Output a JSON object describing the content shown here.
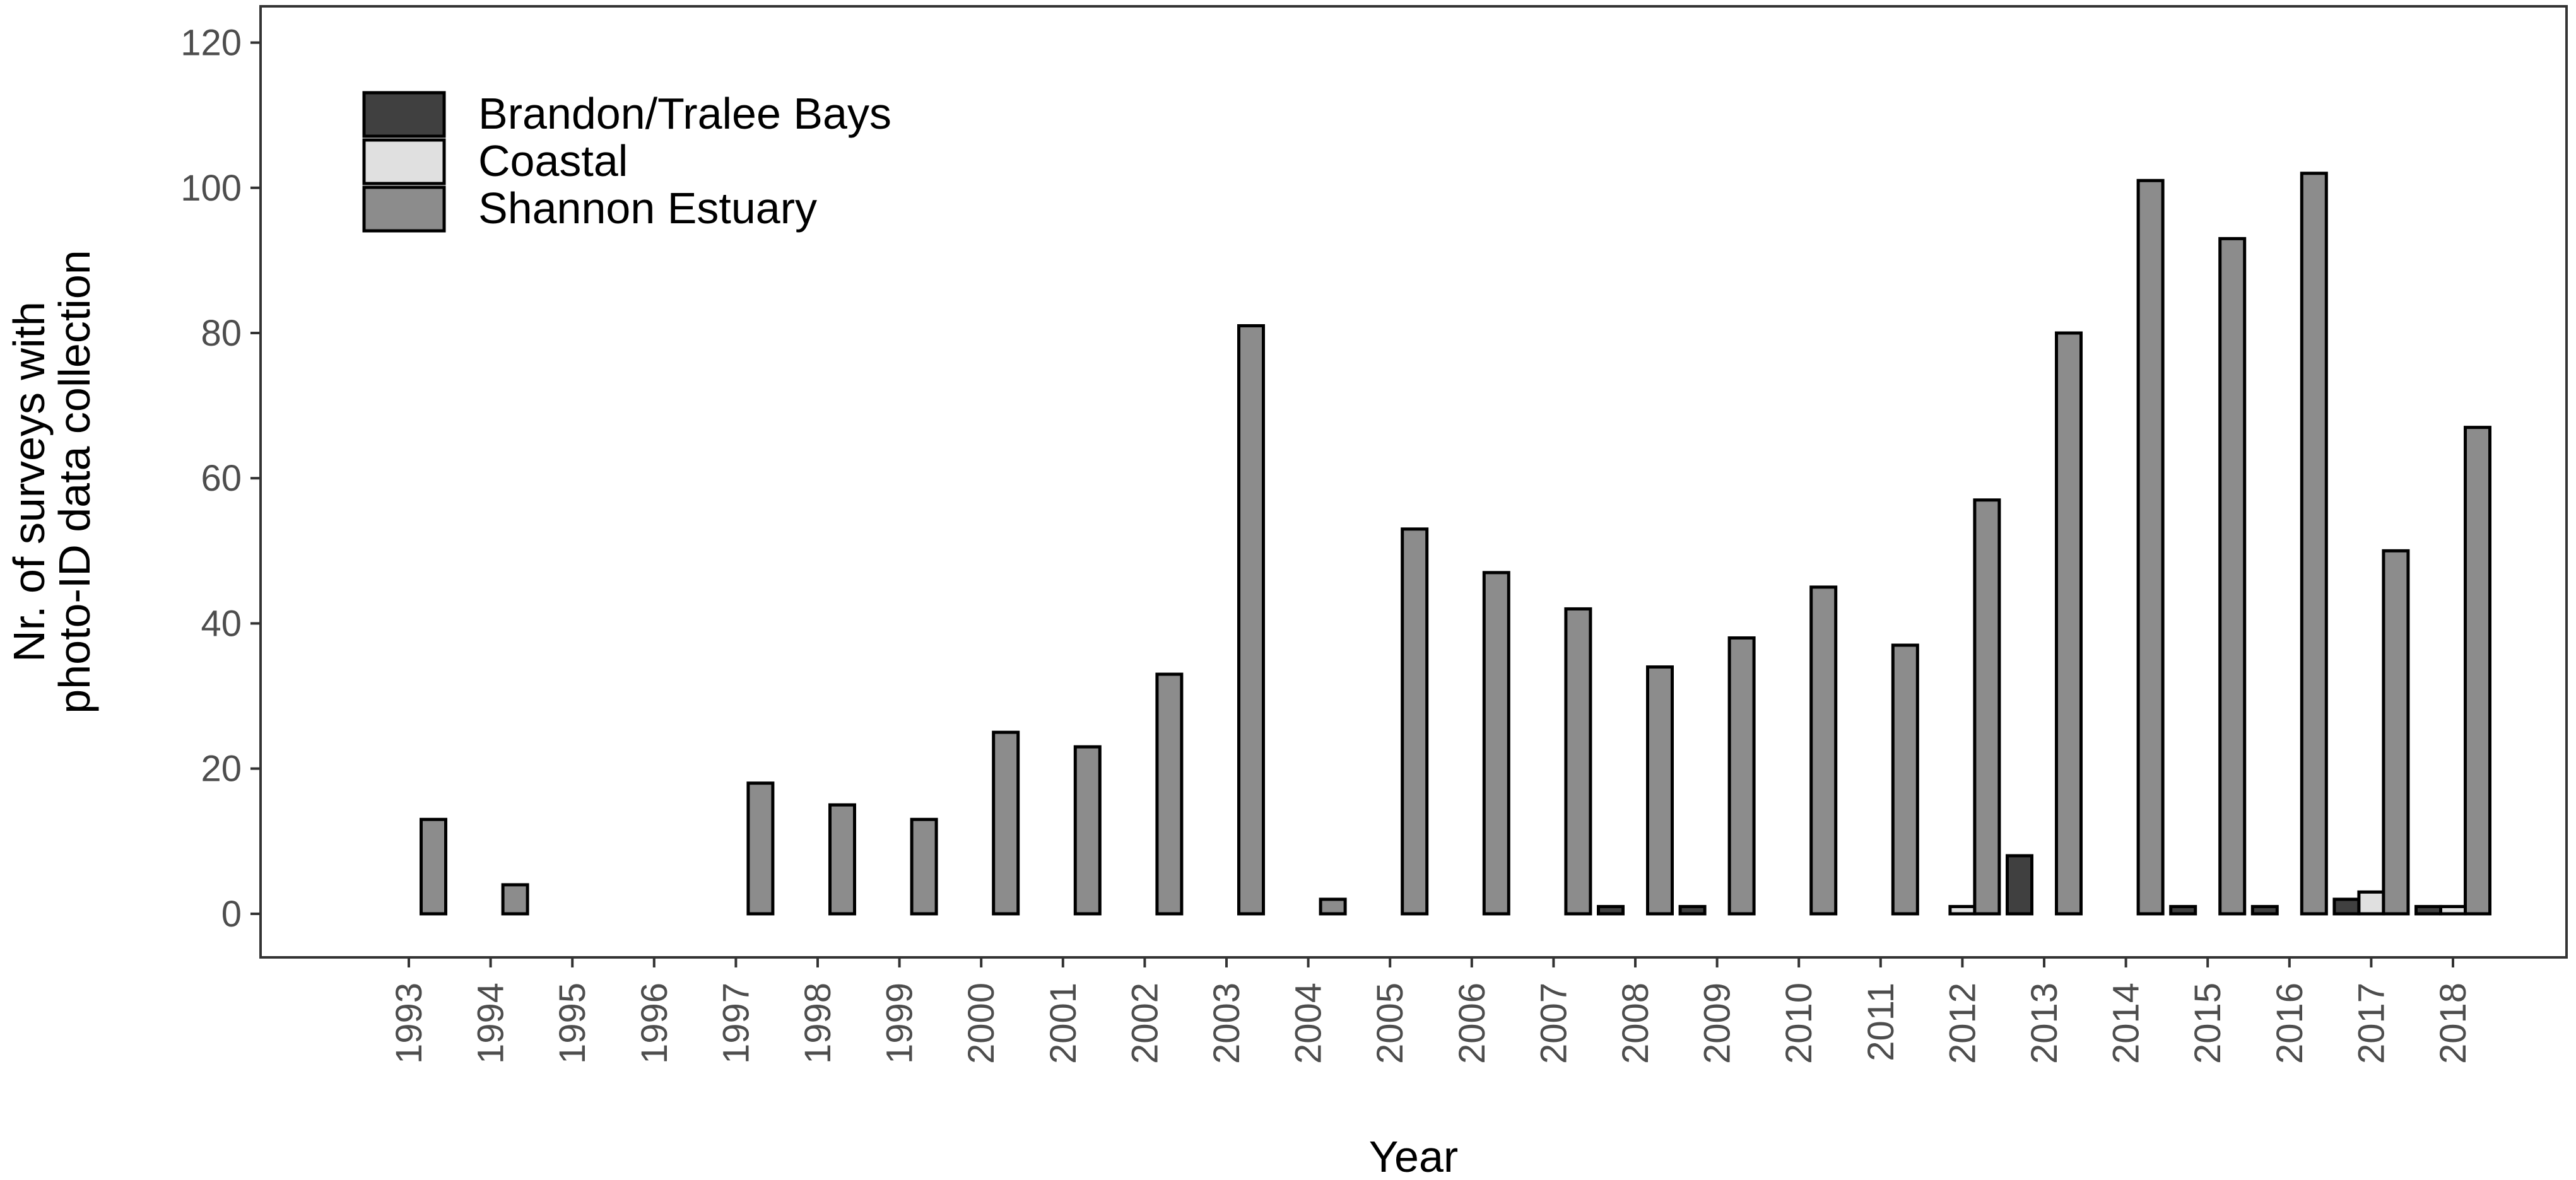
{
  "chart_data": {
    "type": "bar",
    "title": "",
    "xlabel": "Year",
    "ylabel": [
      "Nr. of surveys with",
      "photo-ID data collection"
    ],
    "ylim": [
      -6,
      125
    ],
    "yticks": [
      0,
      20,
      40,
      60,
      80,
      100,
      120
    ],
    "grid": false,
    "legend_position": "top-left",
    "categories": [
      "1993",
      "1994",
      "1995",
      "1996",
      "1997",
      "1998",
      "1999",
      "2000",
      "2001",
      "2002",
      "2003",
      "2004",
      "2005",
      "2006",
      "2007",
      "2008",
      "2009",
      "2010",
      "2011",
      "2012",
      "2013",
      "2014",
      "2015",
      "2016",
      "2017",
      "2018"
    ],
    "series": [
      {
        "name": "Brandon/Tralee Bays",
        "color": "#404040",
        "values": [
          0,
          0,
          null,
          null,
          0,
          0,
          0,
          0,
          0,
          0,
          0,
          0,
          0,
          0,
          0,
          1,
          1,
          0,
          0,
          0,
          8,
          0,
          1,
          1,
          2,
          1
        ]
      },
      {
        "name": "Coastal",
        "color": "#e0e0e0",
        "values": [
          0,
          0,
          null,
          null,
          0,
          0,
          0,
          0,
          0,
          0,
          0,
          0,
          0,
          0,
          0,
          0,
          0,
          0,
          0,
          1,
          0,
          0,
          0,
          0,
          3,
          1
        ]
      },
      {
        "name": "Shannon Estuary",
        "color": "#8c8c8c",
        "values": [
          13,
          4,
          null,
          null,
          18,
          15,
          13,
          25,
          23,
          33,
          81,
          2,
          53,
          47,
          42,
          34,
          38,
          45,
          37,
          57,
          80,
          101,
          93,
          102,
          50,
          67
        ]
      }
    ]
  }
}
